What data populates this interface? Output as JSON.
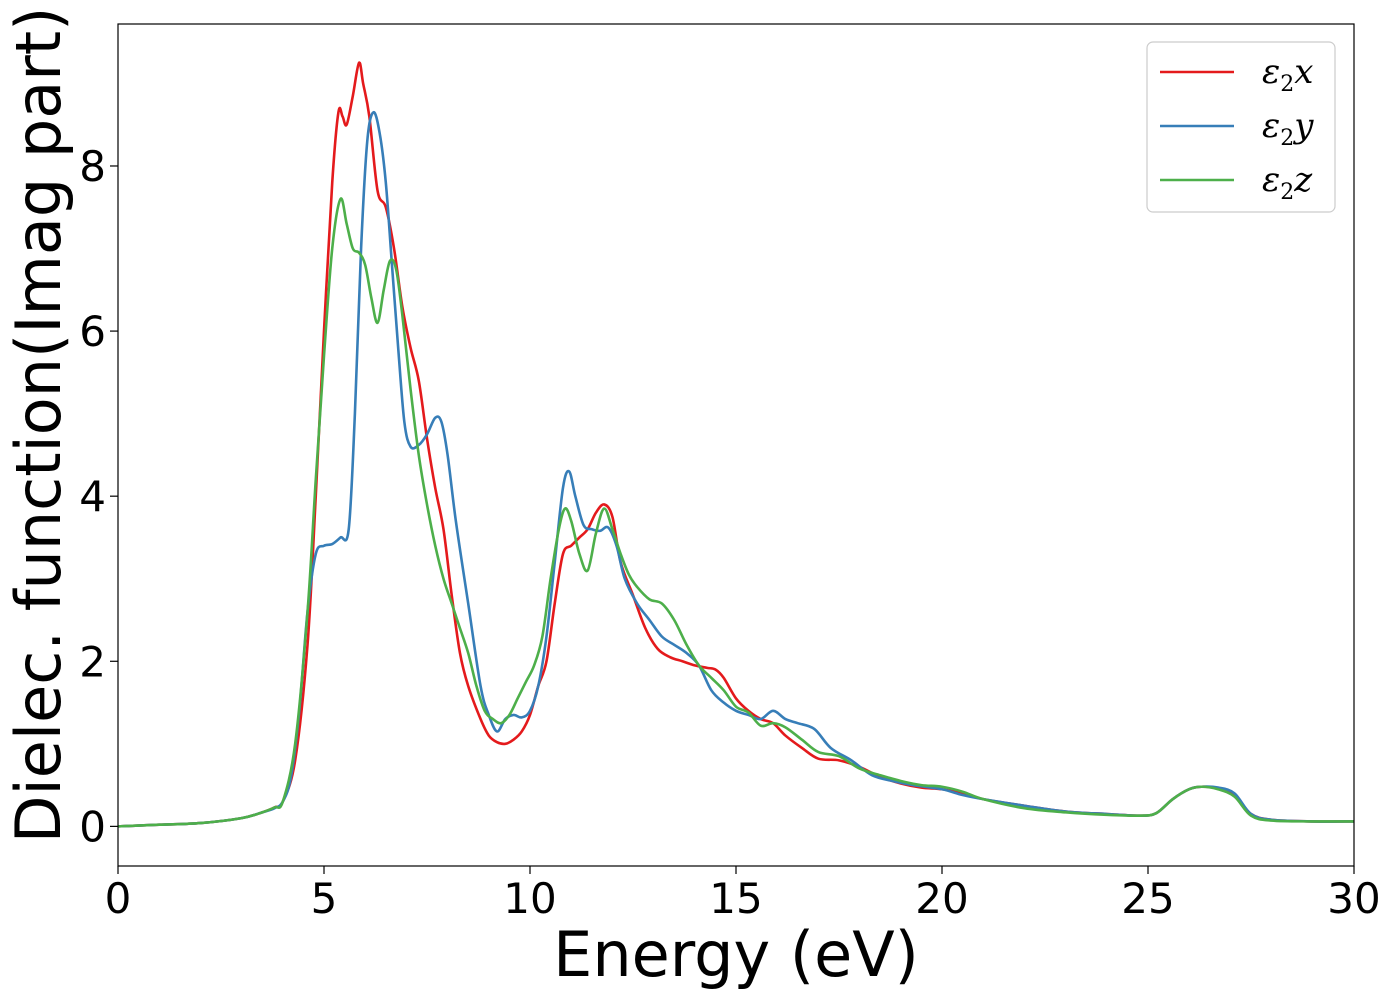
{
  "chart_data": {
    "type": "line",
    "xlabel": "Energy (eV)",
    "ylabel": "Dielec. function(Imag part)",
    "xlim": [
      0,
      30
    ],
    "ylim": [
      -0.48,
      9.72
    ],
    "xticks": [
      0,
      5,
      10,
      15,
      20,
      25,
      30
    ],
    "yticks": [
      0,
      2,
      4,
      6,
      8
    ],
    "grid": false,
    "legend_position": "top-right",
    "series": [
      {
        "name": "ε2x",
        "legend_base": "ε",
        "legend_sub": "2",
        "legend_var": "x",
        "color": "#e41a1c",
        "points": [
          [
            0,
            0.0
          ],
          [
            1,
            0.02
          ],
          [
            2,
            0.04
          ],
          [
            3,
            0.1
          ],
          [
            3.5,
            0.17
          ],
          [
            3.8,
            0.23
          ],
          [
            4.0,
            0.3
          ],
          [
            4.3,
            0.8
          ],
          [
            4.6,
            2.2
          ],
          [
            4.8,
            4.0
          ],
          [
            5.0,
            6.0
          ],
          [
            5.2,
            7.8
          ],
          [
            5.35,
            8.65
          ],
          [
            5.45,
            8.6
          ],
          [
            5.55,
            8.5
          ],
          [
            5.7,
            8.85
          ],
          [
            5.85,
            9.25
          ],
          [
            5.95,
            9.0
          ],
          [
            6.1,
            8.6
          ],
          [
            6.3,
            7.7
          ],
          [
            6.5,
            7.5
          ],
          [
            6.7,
            7.0
          ],
          [
            6.9,
            6.3
          ],
          [
            7.1,
            5.8
          ],
          [
            7.3,
            5.4
          ],
          [
            7.5,
            4.7
          ],
          [
            7.7,
            4.1
          ],
          [
            7.9,
            3.6
          ],
          [
            8.1,
            2.8
          ],
          [
            8.3,
            2.1
          ],
          [
            8.5,
            1.7
          ],
          [
            8.8,
            1.3
          ],
          [
            9.0,
            1.1
          ],
          [
            9.2,
            1.02
          ],
          [
            9.4,
            1.0
          ],
          [
            9.6,
            1.05
          ],
          [
            9.8,
            1.15
          ],
          [
            10.0,
            1.35
          ],
          [
            10.2,
            1.7
          ],
          [
            10.4,
            2.0
          ],
          [
            10.6,
            2.7
          ],
          [
            10.8,
            3.3
          ],
          [
            11.0,
            3.4
          ],
          [
            11.2,
            3.5
          ],
          [
            11.4,
            3.6
          ],
          [
            11.6,
            3.8
          ],
          [
            11.8,
            3.9
          ],
          [
            12.0,
            3.75
          ],
          [
            12.2,
            3.2
          ],
          [
            12.5,
            2.8
          ],
          [
            12.8,
            2.4
          ],
          [
            13.1,
            2.15
          ],
          [
            13.4,
            2.05
          ],
          [
            13.7,
            2.0
          ],
          [
            14.0,
            1.95
          ],
          [
            14.3,
            1.92
          ],
          [
            14.5,
            1.9
          ],
          [
            14.7,
            1.8
          ],
          [
            15.0,
            1.55
          ],
          [
            15.3,
            1.4
          ],
          [
            15.6,
            1.3
          ],
          [
            15.9,
            1.25
          ],
          [
            16.2,
            1.1
          ],
          [
            16.6,
            0.95
          ],
          [
            17.0,
            0.82
          ],
          [
            17.5,
            0.8
          ],
          [
            18.0,
            0.72
          ],
          [
            18.5,
            0.6
          ],
          [
            19.0,
            0.52
          ],
          [
            19.5,
            0.47
          ],
          [
            20.0,
            0.45
          ],
          [
            20.5,
            0.4
          ],
          [
            21.0,
            0.33
          ],
          [
            22.0,
            0.25
          ],
          [
            23.0,
            0.18
          ],
          [
            24.0,
            0.15
          ],
          [
            24.8,
            0.13
          ],
          [
            25.2,
            0.16
          ],
          [
            25.6,
            0.33
          ],
          [
            26.0,
            0.45
          ],
          [
            26.3,
            0.48
          ],
          [
            26.7,
            0.46
          ],
          [
            27.1,
            0.38
          ],
          [
            27.5,
            0.15
          ],
          [
            28.0,
            0.08
          ],
          [
            29.0,
            0.06
          ],
          [
            30.0,
            0.06
          ]
        ]
      },
      {
        "name": "ε2y",
        "legend_base": "ε",
        "legend_sub": "2",
        "legend_var": "y",
        "color": "#377eb8",
        "points": [
          [
            0,
            0.0
          ],
          [
            1,
            0.02
          ],
          [
            2,
            0.04
          ],
          [
            3,
            0.1
          ],
          [
            3.5,
            0.17
          ],
          [
            3.8,
            0.22
          ],
          [
            4.0,
            0.3
          ],
          [
            4.2,
            0.6
          ],
          [
            4.4,
            1.4
          ],
          [
            4.6,
            2.6
          ],
          [
            4.8,
            3.3
          ],
          [
            5.0,
            3.4
          ],
          [
            5.2,
            3.42
          ],
          [
            5.4,
            3.5
          ],
          [
            5.6,
            3.6
          ],
          [
            5.75,
            5.0
          ],
          [
            5.9,
            7.0
          ],
          [
            6.05,
            8.3
          ],
          [
            6.2,
            8.65
          ],
          [
            6.35,
            8.4
          ],
          [
            6.5,
            7.8
          ],
          [
            6.65,
            6.8
          ],
          [
            6.8,
            5.8
          ],
          [
            6.95,
            4.9
          ],
          [
            7.1,
            4.6
          ],
          [
            7.3,
            4.62
          ],
          [
            7.5,
            4.75
          ],
          [
            7.7,
            4.95
          ],
          [
            7.85,
            4.9
          ],
          [
            8.0,
            4.5
          ],
          [
            8.2,
            3.7
          ],
          [
            8.5,
            2.7
          ],
          [
            8.8,
            1.7
          ],
          [
            9.0,
            1.35
          ],
          [
            9.2,
            1.15
          ],
          [
            9.4,
            1.3
          ],
          [
            9.6,
            1.35
          ],
          [
            9.8,
            1.32
          ],
          [
            10.0,
            1.4
          ],
          [
            10.2,
            1.7
          ],
          [
            10.4,
            2.3
          ],
          [
            10.6,
            3.2
          ],
          [
            10.8,
            4.1
          ],
          [
            10.95,
            4.3
          ],
          [
            11.1,
            4.0
          ],
          [
            11.3,
            3.65
          ],
          [
            11.5,
            3.6
          ],
          [
            11.7,
            3.58
          ],
          [
            11.9,
            3.62
          ],
          [
            12.1,
            3.4
          ],
          [
            12.3,
            3.0
          ],
          [
            12.6,
            2.7
          ],
          [
            12.9,
            2.5
          ],
          [
            13.2,
            2.3
          ],
          [
            13.5,
            2.2
          ],
          [
            13.8,
            2.1
          ],
          [
            14.1,
            1.95
          ],
          [
            14.4,
            1.65
          ],
          [
            14.7,
            1.5
          ],
          [
            15.0,
            1.4
          ],
          [
            15.3,
            1.35
          ],
          [
            15.6,
            1.3
          ],
          [
            15.9,
            1.4
          ],
          [
            16.2,
            1.3
          ],
          [
            16.5,
            1.25
          ],
          [
            16.9,
            1.18
          ],
          [
            17.3,
            0.95
          ],
          [
            17.8,
            0.8
          ],
          [
            18.3,
            0.62
          ],
          [
            18.8,
            0.55
          ],
          [
            19.3,
            0.5
          ],
          [
            20.0,
            0.45
          ],
          [
            20.5,
            0.38
          ],
          [
            21.0,
            0.33
          ],
          [
            22.0,
            0.25
          ],
          [
            23.0,
            0.18
          ],
          [
            24.0,
            0.15
          ],
          [
            24.8,
            0.13
          ],
          [
            25.2,
            0.16
          ],
          [
            25.6,
            0.33
          ],
          [
            26.0,
            0.45
          ],
          [
            26.3,
            0.48
          ],
          [
            26.7,
            0.47
          ],
          [
            27.1,
            0.4
          ],
          [
            27.5,
            0.15
          ],
          [
            28.0,
            0.08
          ],
          [
            29.0,
            0.06
          ],
          [
            30.0,
            0.06
          ]
        ]
      },
      {
        "name": "ε2z",
        "legend_base": "ε",
        "legend_sub": "2",
        "legend_var": "z",
        "color": "#4daf4a",
        "points": [
          [
            0,
            0.0
          ],
          [
            1,
            0.02
          ],
          [
            2,
            0.04
          ],
          [
            3,
            0.1
          ],
          [
            3.5,
            0.17
          ],
          [
            3.8,
            0.23
          ],
          [
            4.0,
            0.3
          ],
          [
            4.3,
            1.0
          ],
          [
            4.6,
            2.6
          ],
          [
            4.8,
            4.2
          ],
          [
            5.0,
            5.7
          ],
          [
            5.2,
            7.0
          ],
          [
            5.4,
            7.6
          ],
          [
            5.55,
            7.3
          ],
          [
            5.7,
            7.0
          ],
          [
            5.85,
            6.95
          ],
          [
            6.0,
            6.8
          ],
          [
            6.15,
            6.4
          ],
          [
            6.3,
            6.1
          ],
          [
            6.45,
            6.5
          ],
          [
            6.6,
            6.85
          ],
          [
            6.75,
            6.75
          ],
          [
            6.9,
            6.2
          ],
          [
            7.1,
            5.3
          ],
          [
            7.3,
            4.5
          ],
          [
            7.5,
            3.9
          ],
          [
            7.7,
            3.4
          ],
          [
            7.9,
            3.0
          ],
          [
            8.1,
            2.7
          ],
          [
            8.3,
            2.4
          ],
          [
            8.5,
            2.1
          ],
          [
            8.7,
            1.7
          ],
          [
            8.9,
            1.4
          ],
          [
            9.1,
            1.3
          ],
          [
            9.3,
            1.25
          ],
          [
            9.5,
            1.35
          ],
          [
            9.7,
            1.55
          ],
          [
            9.9,
            1.75
          ],
          [
            10.1,
            1.95
          ],
          [
            10.3,
            2.3
          ],
          [
            10.5,
            3.0
          ],
          [
            10.7,
            3.6
          ],
          [
            10.85,
            3.85
          ],
          [
            11.0,
            3.7
          ],
          [
            11.2,
            3.3
          ],
          [
            11.4,
            3.1
          ],
          [
            11.6,
            3.55
          ],
          [
            11.8,
            3.85
          ],
          [
            12.0,
            3.6
          ],
          [
            12.2,
            3.3
          ],
          [
            12.4,
            3.05
          ],
          [
            12.6,
            2.9
          ],
          [
            12.9,
            2.75
          ],
          [
            13.2,
            2.7
          ],
          [
            13.5,
            2.5
          ],
          [
            13.8,
            2.2
          ],
          [
            14.1,
            1.95
          ],
          [
            14.4,
            1.8
          ],
          [
            14.7,
            1.65
          ],
          [
            15.0,
            1.45
          ],
          [
            15.3,
            1.38
          ],
          [
            15.6,
            1.22
          ],
          [
            15.9,
            1.25
          ],
          [
            16.2,
            1.2
          ],
          [
            16.6,
            1.05
          ],
          [
            17.0,
            0.9
          ],
          [
            17.5,
            0.85
          ],
          [
            18.0,
            0.7
          ],
          [
            18.5,
            0.62
          ],
          [
            19.0,
            0.55
          ],
          [
            19.5,
            0.5
          ],
          [
            20.0,
            0.48
          ],
          [
            20.5,
            0.42
          ],
          [
            21.0,
            0.33
          ],
          [
            22.0,
            0.22
          ],
          [
            23.0,
            0.17
          ],
          [
            24.0,
            0.14
          ],
          [
            24.8,
            0.13
          ],
          [
            25.2,
            0.16
          ],
          [
            25.6,
            0.33
          ],
          [
            26.0,
            0.45
          ],
          [
            26.3,
            0.48
          ],
          [
            26.7,
            0.45
          ],
          [
            27.1,
            0.36
          ],
          [
            27.5,
            0.13
          ],
          [
            28.0,
            0.07
          ],
          [
            29.0,
            0.06
          ],
          [
            30.0,
            0.06
          ]
        ]
      }
    ]
  }
}
